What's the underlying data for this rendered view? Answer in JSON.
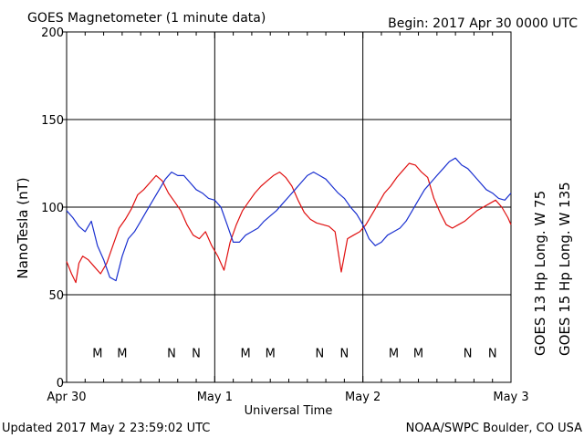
{
  "chart_data": {
    "type": "line",
    "title": "GOES Magnetometer (1 minute data)",
    "begin_label": "Begin:  2017 Apr 30 0000 UTC",
    "xlabel": "Universal Time",
    "ylabel": "NanoTesla (nT)",
    "ylim": [
      0,
      200
    ],
    "y_ticks": [
      0,
      50,
      100,
      150,
      200
    ],
    "xlim": [
      0,
      72
    ],
    "x_ticks": [
      {
        "x": 0,
        "label": "Apr 30"
      },
      {
        "x": 24,
        "label": "May 1"
      },
      {
        "x": 48,
        "label": "May 2"
      },
      {
        "x": 72,
        "label": "May 3"
      }
    ],
    "grid": true,
    "footer_left": "Updated 2017 May  2 23:59:02 UTC",
    "footer_right": "NOAA/SWPC Boulder, CO USA",
    "series": [
      {
        "name": "GOES 13 Hp  Long. W 75",
        "color": "#e01010",
        "x": [
          0,
          0.8,
          1.5,
          2,
          2.6,
          3.5,
          4.5,
          5.5,
          6.5,
          7.5,
          8.5,
          9.5,
          10.5,
          11.5,
          12.5,
          13.5,
          14.5,
          15.5,
          16.5,
          17.5,
          18.5,
          19.5,
          20.5,
          21.5,
          22.5,
          23.5,
          24.5,
          25.5,
          26.5,
          27.5,
          28.5,
          29.5,
          30.5,
          31.5,
          32.5,
          33.5,
          34.5,
          35.5,
          36.5,
          37.5,
          38.5,
          39.5,
          40.5,
          41.5,
          42.5,
          43.5,
          44.5,
          45.5,
          46.5,
          47.5,
          48.5,
          49.5,
          50.5,
          51.5,
          52.5,
          53.5,
          54.5,
          55.5,
          56.5,
          57.5,
          58.5,
          59.5,
          60.5,
          61.5,
          62.5,
          63.5,
          64.5,
          65.5,
          66.5,
          67.5,
          68.5,
          69.5,
          70.5,
          71.5,
          72
        ],
        "values": [
          69,
          62,
          57,
          68,
          72,
          70,
          66,
          62,
          68,
          78,
          88,
          93,
          99,
          107,
          110,
          114,
          118,
          115,
          108,
          103,
          98,
          90,
          84,
          82,
          86,
          78,
          72,
          64,
          80,
          90,
          98,
          103,
          108,
          112,
          115,
          118,
          120,
          117,
          112,
          104,
          97,
          93,
          91,
          90,
          89,
          86,
          63,
          82,
          84,
          86,
          90,
          96,
          102,
          108,
          112,
          117,
          121,
          125,
          124,
          120,
          117,
          105,
          97,
          90,
          88,
          90,
          92,
          95,
          98,
          100,
          102,
          104,
          100,
          94,
          90
        ]
      },
      {
        "name": "GOES 15 Hp  Long. W 135",
        "color": "#1a30d0",
        "x": [
          0,
          1,
          2,
          3,
          4,
          5,
          6,
          7,
          8,
          9,
          10,
          11,
          12,
          13,
          14,
          15,
          16,
          17,
          18,
          19,
          20,
          21,
          22,
          23,
          24,
          25,
          26,
          27,
          28,
          29,
          30,
          31,
          32,
          33,
          34,
          35,
          36,
          37,
          38,
          39,
          40,
          41,
          42,
          43,
          44,
          45,
          46,
          47,
          48,
          49,
          50,
          51,
          52,
          53,
          54,
          55,
          56,
          57,
          58,
          59,
          60,
          61,
          62,
          63,
          64,
          65,
          66,
          67,
          68,
          69,
          70,
          71,
          72
        ],
        "values": [
          98,
          94,
          89,
          86,
          92,
          78,
          70,
          60,
          58,
          72,
          82,
          86,
          92,
          98,
          104,
          110,
          116,
          120,
          118,
          118,
          114,
          110,
          108,
          105,
          104,
          100,
          90,
          80,
          80,
          84,
          86,
          88,
          92,
          95,
          98,
          102,
          106,
          110,
          114,
          118,
          120,
          118,
          116,
          112,
          108,
          105,
          100,
          96,
          90,
          82,
          78,
          80,
          84,
          86,
          88,
          92,
          98,
          104,
          110,
          114,
          118,
          122,
          126,
          128,
          124,
          122,
          118,
          114,
          110,
          108,
          105,
          104,
          108
        ]
      }
    ],
    "markers": [
      {
        "label": "M",
        "x": 5,
        "series": 0
      },
      {
        "label": "M",
        "x": 9,
        "series": 1
      },
      {
        "label": "N",
        "x": 17,
        "series": 0
      },
      {
        "label": "N",
        "x": 21,
        "series": 1
      },
      {
        "label": "M",
        "x": 29,
        "series": 0
      },
      {
        "label": "M",
        "x": 33,
        "series": 1
      },
      {
        "label": "N",
        "x": 41,
        "series": 0
      },
      {
        "label": "N",
        "x": 45,
        "series": 1
      },
      {
        "label": "M",
        "x": 53,
        "series": 0
      },
      {
        "label": "M",
        "x": 57,
        "series": 1
      },
      {
        "label": "N",
        "x": 65,
        "series": 0
      },
      {
        "label": "N",
        "x": 69,
        "series": 1
      }
    ],
    "marker_level": 17
  }
}
